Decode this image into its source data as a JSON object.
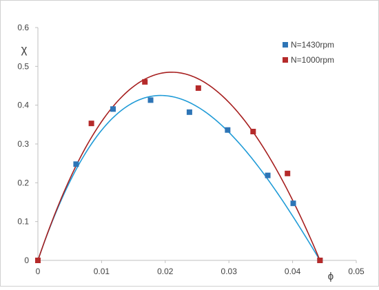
{
  "chart_data": {
    "type": "scatter",
    "xlabel": "ϕ",
    "ylabel": "χ",
    "xlim": [
      0,
      0.05
    ],
    "ylim": [
      0,
      0.6
    ],
    "x_ticks": [
      "0",
      "0.01",
      "0.02",
      "0.03",
      "0.04",
      "0.05"
    ],
    "y_ticks": [
      "0",
      "0.1",
      "0.2",
      "0.3",
      "0.4",
      "0.5",
      "0.6"
    ],
    "grid": false,
    "legend_position": "top-right",
    "series": [
      {
        "name": "N=1430rpm",
        "marker_color": "#2e75b6",
        "curve_color": "#1f9bd7",
        "points": [
          [
            0,
            0
          ],
          [
            0.006,
            0.248
          ],
          [
            0.0118,
            0.39
          ],
          [
            0.0177,
            0.413
          ],
          [
            0.0238,
            0.382
          ],
          [
            0.0298,
            0.336
          ],
          [
            0.0361,
            0.219
          ],
          [
            0.0401,
            0.147
          ],
          [
            0.0443,
            0
          ]
        ],
        "fit_peak": [
          0.0193,
          0.425
        ],
        "fit_root": 0.0443
      },
      {
        "name": "N=1000rpm",
        "marker_color": "#b52a2a",
        "curve_color": "#a61e1e",
        "points": [
          [
            0,
            0
          ],
          [
            0.0084,
            0.353
          ],
          [
            0.0168,
            0.46
          ],
          [
            0.0252,
            0.444
          ],
          [
            0.0338,
            0.332
          ],
          [
            0.0392,
            0.224
          ],
          [
            0.0443,
            0
          ]
        ],
        "fit_peak": [
          0.021,
          0.485
        ],
        "fit_root": 0.0443
      }
    ]
  }
}
